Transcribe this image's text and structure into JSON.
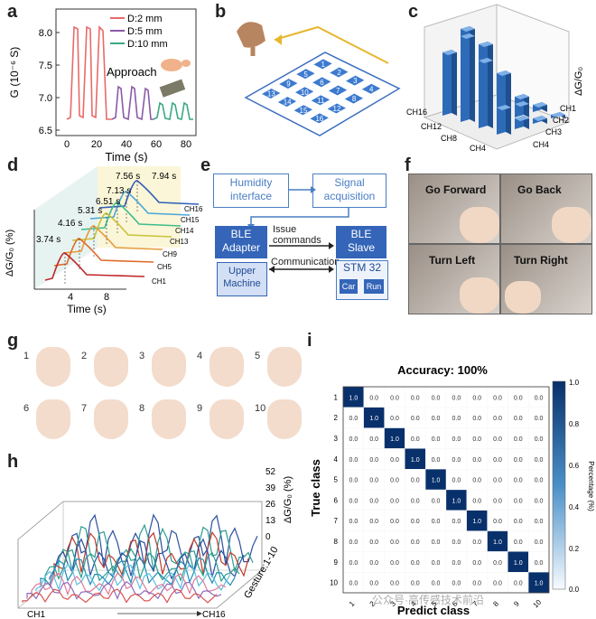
{
  "panels": [
    "a",
    "b",
    "c",
    "d",
    "e",
    "f",
    "g",
    "h",
    "i"
  ],
  "panel_a": {
    "legend": [
      "D:2 mm",
      "D:5 mm",
      "D:10 mm"
    ],
    "legend_colors": [
      "#e86a6a",
      "#8a5aa8",
      "#3aa882"
    ],
    "annotation": "Approach",
    "ylabel": "G (10⁻⁶ S)",
    "xlabel": "Time (s)",
    "yticks": [
      "8.0",
      "7.5",
      "7.0",
      "6.5"
    ],
    "xticks": [
      "0",
      "20",
      "40",
      "60",
      "80"
    ]
  },
  "panel_b": {
    "grid_labels": [
      "13",
      "9",
      "5",
      "1",
      "14",
      "10",
      "6",
      "2",
      "15",
      "11",
      "7",
      "3",
      "16",
      "12",
      "8",
      "4"
    ]
  },
  "panel_c": {
    "zlabel": "ΔG/G₀",
    "ticks_right": [
      "CH1",
      "CH2",
      "CH3",
      "CH4"
    ],
    "ticks_left": [
      "CH16",
      "CH12",
      "CH8",
      "CH4"
    ]
  },
  "panel_d": {
    "times": [
      "3.74 s",
      "4.16 s",
      "5.31 s",
      "6.51 s",
      "7.13 s",
      "7.56 s",
      "7.94 s"
    ],
    "channels": [
      "CH16",
      "CH15",
      "CH14",
      "CH13",
      "CH9",
      "CH5",
      "CH1"
    ],
    "ylabel": "ΔG/G₀ (%)",
    "xlabel": "Time (s)",
    "xticks": [
      "4",
      "8"
    ]
  },
  "panel_e": {
    "humidity": "Humidity interface",
    "signal": "Signal acquisition",
    "ble_adapter": "BLE Adapter",
    "ble_slave": "BLE Slave",
    "upper_machine": "Upper Machine",
    "issue_commands": "Issue commands",
    "communication": "Communication",
    "stm": "STM 32",
    "car": "Car",
    "run": "Run"
  },
  "panel_f": {
    "labels": [
      "Go Forward",
      "Go Back",
      "Turn Left",
      "Turn Right"
    ]
  },
  "panel_g": {
    "gestures": [
      "1",
      "2",
      "3",
      "4",
      "5",
      "6",
      "7",
      "8",
      "9",
      "10"
    ]
  },
  "panel_h": {
    "zticks": [
      "52",
      "39",
      "26",
      "13",
      "0"
    ],
    "zlabel": "ΔG/G₀ (%)",
    "gesture_axis": "Gesture:1-10",
    "ch_start": "CH1",
    "ch_end": "CH16"
  },
  "panel_i": {
    "title": "Accuracy: 100%",
    "ylabel": "True class",
    "xlabel": "Predict class",
    "classes": [
      "1",
      "2",
      "3",
      "4",
      "5",
      "6",
      "7",
      "8",
      "9",
      "10"
    ],
    "colorbar_label": "Percentage (%)",
    "colorbar_ticks": [
      "1.0",
      "0.8",
      "0.6",
      "0.4",
      "0.2",
      "0.0"
    ],
    "diagonal_value": "1.0",
    "off_value": "0.0",
    "watermark": "公众号·高传感技术前沿"
  }
}
